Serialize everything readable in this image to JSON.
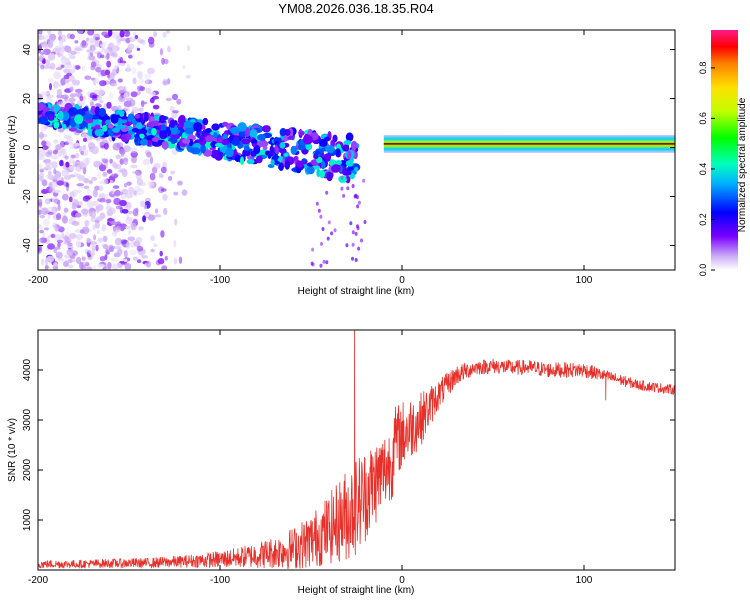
{
  "figure_title": "YM08.2026.036.18.35.R04",
  "colors": {
    "snr_line": "#e8302a",
    "frame": "#000000",
    "centerline": "#000000"
  },
  "chart_data": [
    {
      "id": "spectrogram",
      "type": "heatmap",
      "title": "",
      "xlabel": "Height of straight line (km)",
      "ylabel": "Frequency (Hz)",
      "xlim": [
        -200,
        150
      ],
      "ylim": [
        -50,
        48
      ],
      "xticks": [
        -200,
        -100,
        0,
        100
      ],
      "xtick_labels": [
        "-200",
        "-100",
        "0",
        "100"
      ],
      "yticks": [
        -40,
        -20,
        0,
        20,
        40
      ],
      "ytick_labels": [
        "-40",
        "-20",
        "0",
        "20",
        "40"
      ],
      "colorbar": {
        "label": "Normalized spectral amplitude",
        "range": [
          0,
          0.95
        ],
        "ticks": [
          0.0,
          0.2,
          0.4,
          0.6,
          0.8
        ],
        "tick_labels": [
          "0.0",
          "0.2",
          "0.4",
          "0.6",
          "0.8"
        ],
        "colormap": "rainbow"
      },
      "features": {
        "steady_tone": {
          "x_range": [
            0,
            150
          ],
          "frequency_hz": 1.5,
          "amplitude": 0.9
        },
        "drifting_band": {
          "x_start": -200,
          "x_end": -25,
          "freq_start_hz": 14,
          "freq_end_hz": -5,
          "amplitude_range": [
            0.1,
            0.45
          ]
        },
        "background_noise": {
          "x_range": [
            -200,
            -115
          ],
          "amplitude_range": [
            0.02,
            0.2
          ]
        }
      }
    },
    {
      "id": "snr",
      "type": "line",
      "title": "",
      "xlabel": "Height of straight line (km)",
      "ylabel": "SNR (10 * v/v)",
      "xlim": [
        -200,
        150
      ],
      "ylim": [
        0,
        4800
      ],
      "xticks": [
        -200,
        -100,
        0,
        100
      ],
      "xtick_labels": [
        "-200",
        "-100",
        "0",
        "100"
      ],
      "yticks": [
        1000,
        2000,
        3000,
        4000
      ],
      "ytick_labels": [
        "1000",
        "2000",
        "3000",
        "4000"
      ],
      "series": [
        {
          "name": "SNR",
          "x": [
            -200,
            -180,
            -160,
            -140,
            -120,
            -100,
            -90,
            -80,
            -70,
            -60,
            -50,
            -40,
            -30,
            -25,
            -20,
            -10,
            0,
            10,
            20,
            30,
            40,
            50,
            60,
            70,
            80,
            90,
            100,
            110,
            120,
            130,
            140,
            150
          ],
          "y": [
            150,
            150,
            170,
            180,
            220,
            280,
            330,
            400,
            480,
            600,
            800,
            1100,
            1500,
            1700,
            1900,
            2300,
            2700,
            3000,
            3500,
            3900,
            4050,
            4080,
            4050,
            4050,
            4000,
            4000,
            4000,
            3900,
            3800,
            3700,
            3650,
            3600
          ],
          "noise_amplitude": [
            80,
            80,
            90,
            100,
            120,
            170,
            200,
            260,
            320,
            420,
            550,
            700,
            950,
            1000,
            950,
            800,
            700,
            550,
            300,
            200,
            150,
            150,
            150,
            150,
            150,
            150,
            150,
            120,
            110,
            100,
            100,
            100
          ]
        }
      ],
      "annotations": {
        "peak_x": -26,
        "peak_y": 4800,
        "dip_x": 112,
        "dip_y": 3400
      }
    }
  ]
}
